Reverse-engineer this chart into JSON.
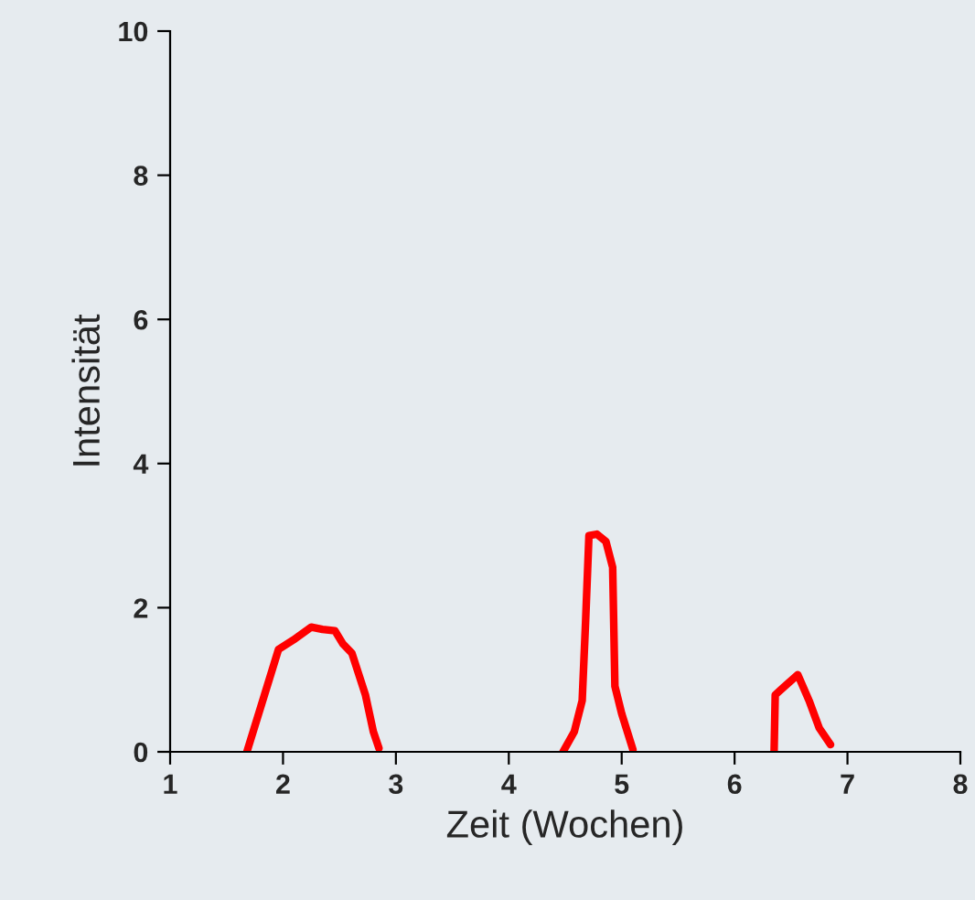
{
  "chart_data": {
    "type": "line",
    "xlabel": "Zeit (Wochen)",
    "ylabel": "Intensität",
    "series": [
      {
        "color": "#ff0000",
        "x": [
          1.68,
          1.96,
          2.09,
          2.25,
          2.35,
          2.46,
          2.53,
          2.61,
          2.73,
          2.8,
          2.85,
          null,
          4.48,
          4.58,
          4.65,
          4.68,
          4.71,
          4.78,
          4.86,
          4.92,
          4.94,
          5.0,
          5.1,
          null,
          6.35,
          6.36,
          6.43,
          6.56,
          6.66,
          6.75,
          6.85
        ],
        "values": [
          0,
          1.42,
          1.55,
          1.73,
          1.7,
          1.68,
          1.5,
          1.37,
          0.79,
          0.28,
          0.05,
          null,
          0,
          0.28,
          0.71,
          1.8,
          3.0,
          3.02,
          2.92,
          2.56,
          0.91,
          0.53,
          0.03,
          null,
          0,
          0.79,
          0.89,
          1.07,
          0.71,
          0.33,
          0.1
        ]
      }
    ],
    "xlim": [
      1,
      8
    ],
    "xticks": [
      1,
      2,
      3,
      4,
      5,
      6,
      7,
      8
    ],
    "ylim": [
      0,
      10
    ],
    "yticks": [
      0,
      2,
      4,
      6,
      8,
      10
    ],
    "grid": false,
    "legend": false,
    "marker": "none",
    "line_style": "solid"
  }
}
